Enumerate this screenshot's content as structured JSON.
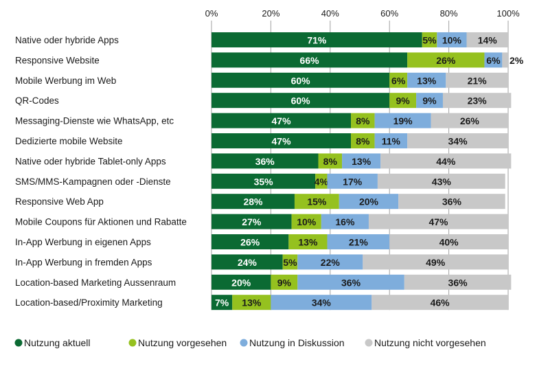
{
  "chart_data": {
    "type": "bar",
    "orientation": "horizontal",
    "stacked": true,
    "xlim": [
      0,
      100
    ],
    "x_ticks": [
      "0%",
      "20%",
      "40%",
      "60%",
      "80%",
      "100%"
    ],
    "grid": true,
    "legend_position": "bottom",
    "categories": [
      "Native oder hybride Apps",
      "Responsive Website",
      "Mobile Werbung im Web",
      "QR-Codes",
      "Messaging-Dienste wie WhatsApp, etc",
      "Dedizierte mobile Website",
      "Native oder hybride Tablet-only Apps",
      "SMS/MMS-Kampagnen oder -Dienste",
      "Responsive Web App",
      "Mobile Coupons für Aktionen und Rabatte",
      "In-App Werbung in eigenen Apps",
      "In-App Werbung in fremden Apps",
      "Location-based Marketing Aussenraum",
      "Location-based/Proximity Marketing"
    ],
    "series": [
      {
        "name": "Nutzung aktuell",
        "color": "#0b6a33",
        "label_color": "#ffffff",
        "values": [
          71,
          66,
          60,
          60,
          47,
          47,
          36,
          35,
          28,
          27,
          26,
          24,
          20,
          7
        ]
      },
      {
        "name": "Nutzung vorgesehen",
        "color": "#95c11f",
        "label_color": "#1a1a1a",
        "values": [
          5,
          26,
          6,
          9,
          8,
          8,
          8,
          4,
          15,
          10,
          13,
          5,
          9,
          13
        ]
      },
      {
        "name": "Nutzung in Diskussion",
        "color": "#7eaddc",
        "label_color": "#1a1a1a",
        "values": [
          10,
          6,
          13,
          9,
          19,
          11,
          13,
          17,
          20,
          16,
          21,
          22,
          36,
          34
        ]
      },
      {
        "name": "Nutzung nicht vorgesehen",
        "color": "#c8c8c8",
        "label_color": "#1a1a1a",
        "values": [
          14,
          2,
          21,
          23,
          26,
          34,
          44,
          43,
          36,
          47,
          40,
          49,
          36,
          46
        ]
      }
    ]
  }
}
